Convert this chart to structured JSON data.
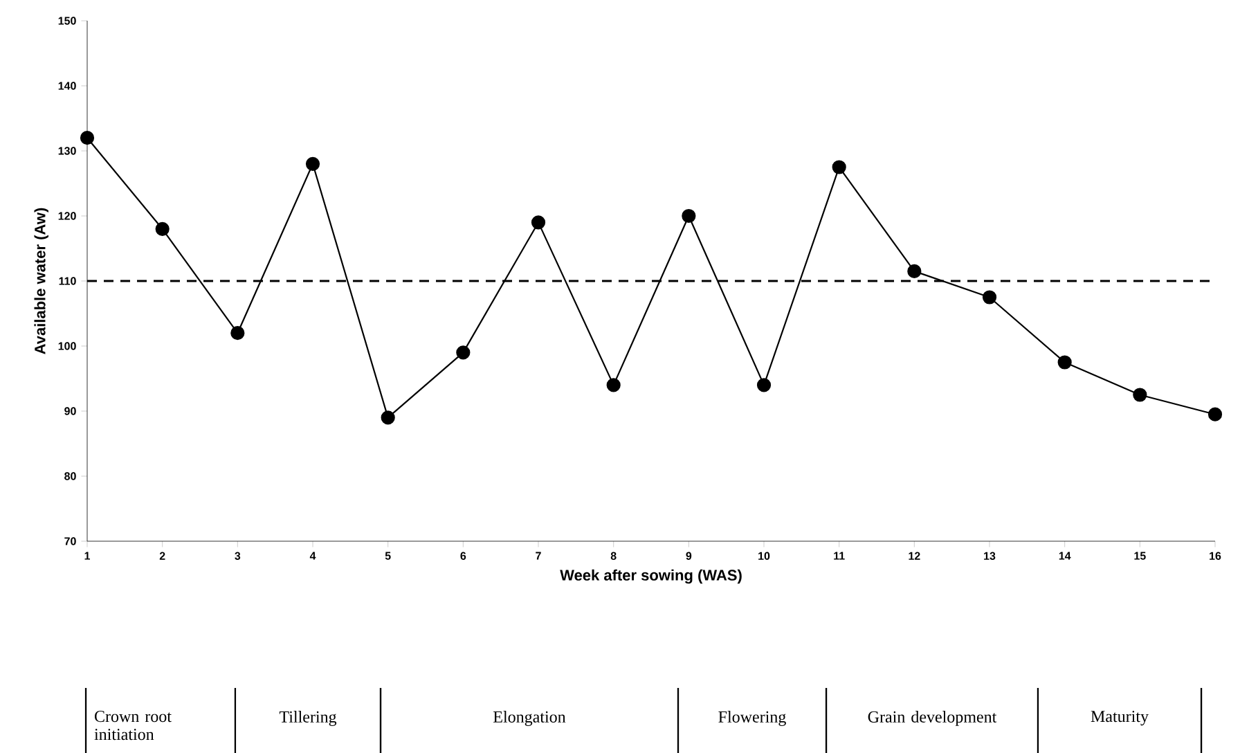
{
  "chart_data": {
    "type": "line",
    "xlabel": "Week after sowing (WAS)",
    "ylabel": "Available water (Aw)",
    "x": [
      1,
      2,
      3,
      4,
      5,
      6,
      7,
      8,
      9,
      10,
      11,
      12,
      13,
      14,
      15,
      16
    ],
    "series": [
      {
        "color": "#000000",
        "values": [
          132,
          118,
          102,
          128,
          89,
          99,
          119,
          94,
          120,
          94,
          127.5,
          111.5,
          107.5,
          97.5,
          92.5,
          89.5
        ]
      }
    ],
    "xlim": [
      1,
      16
    ],
    "xticks": [
      1,
      2,
      3,
      4,
      5,
      6,
      7,
      8,
      9,
      10,
      11,
      12,
      13,
      14,
      15,
      16
    ],
    "ylim": [
      70,
      150
    ],
    "yticks": [
      70,
      80,
      90,
      100,
      110,
      120,
      130,
      140,
      150
    ],
    "ref_lines": [
      {
        "axis": "y",
        "value": 110,
        "color": "#000000",
        "line_style": "dashed"
      }
    ],
    "marker": "circle",
    "line_style": "solid",
    "grid": false,
    "annotations": [
      "Crown root initiation",
      "Tillering",
      "Elongation",
      "Flowering",
      "Grain development",
      "Maturity"
    ]
  }
}
